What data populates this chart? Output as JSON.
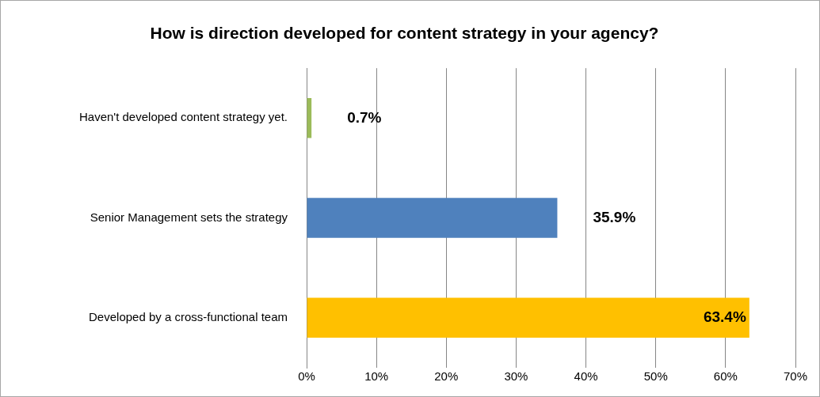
{
  "chart_data": {
    "type": "bar",
    "orientation": "horizontal",
    "title": "How is direction developed for content strategy in your agency?",
    "categories": [
      "Haven't developed content strategy yet.",
      "Senior Management sets the strategy",
      "Developed by a cross-functional team"
    ],
    "values": [
      0.7,
      35.9,
      63.4
    ],
    "colors": [
      "#9bbb59",
      "#4f81bd",
      "#ffc000"
    ],
    "value_labels": [
      "0.7%",
      "35.9%",
      "63.4%"
    ],
    "xlim": [
      0,
      70
    ],
    "xticks": [
      {
        "value": 0,
        "label": "0%"
      },
      {
        "value": 10,
        "label": "10%"
      },
      {
        "value": 20,
        "label": "20%"
      },
      {
        "value": 30,
        "label": "30%"
      },
      {
        "value": 40,
        "label": "40%"
      },
      {
        "value": 50,
        "label": "50%"
      },
      {
        "value": 60,
        "label": "60%"
      },
      {
        "value": 70,
        "label": "70%"
      }
    ],
    "grid": "x",
    "legend": false
  }
}
